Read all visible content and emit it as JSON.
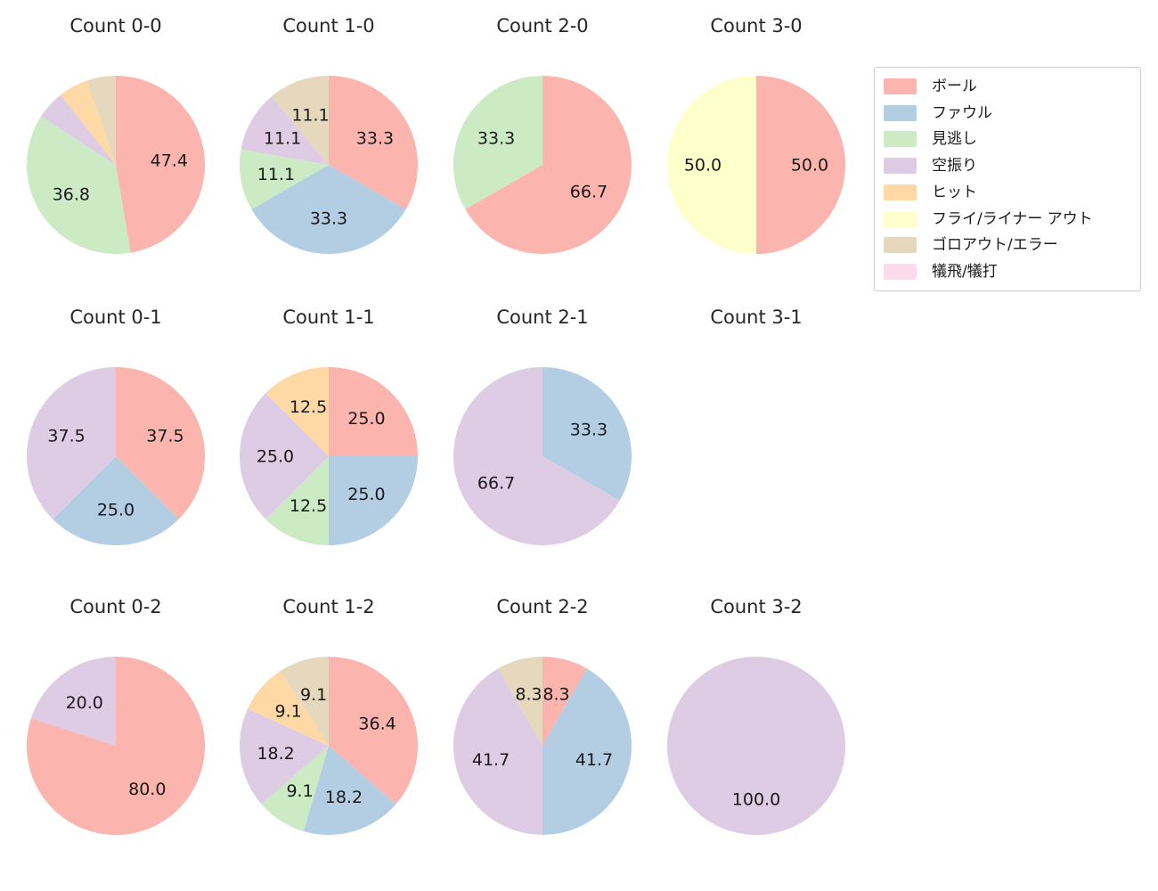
{
  "page": {
    "background": "#ffffff",
    "text_color": "#1a1a1a",
    "title_color": "#262626"
  },
  "legend": {
    "border_color": "#cccccc",
    "items": [
      {
        "label": "ボール",
        "color": "#fbb4ae"
      },
      {
        "label": "ファウル",
        "color": "#b3cde3"
      },
      {
        "label": "見逃し",
        "color": "#ccebc5"
      },
      {
        "label": "空振り",
        "color": "#decbe4"
      },
      {
        "label": "ヒット",
        "color": "#fed9a6"
      },
      {
        "label": "フライ/ライナー アウト",
        "color": "#ffffcc"
      },
      {
        "label": "ゴロアウト/エラー",
        "color": "#e5d8bd"
      },
      {
        "label": "犠飛/犠打",
        "color": "#fddaec"
      }
    ]
  },
  "chart_data": {
    "type": "pie",
    "layout": "4x3 grid of pie charts, legend box upper right",
    "start_angle_deg": 90,
    "direction": "clockwise",
    "pct_label_distance": 0.6,
    "pies": [
      {
        "title": "Count 0-0",
        "slices": [
          {
            "category": "ボール",
            "value": 47.4,
            "label": "47.4"
          },
          {
            "category": "見逃し",
            "value": 36.8,
            "label": "36.8"
          },
          {
            "category": "空振り",
            "value": 5.3,
            "label": ""
          },
          {
            "category": "ヒット",
            "value": 5.3,
            "label": ""
          },
          {
            "category": "ゴロアウト/エラー",
            "value": 5.3,
            "label": ""
          }
        ]
      },
      {
        "title": "Count 1-0",
        "slices": [
          {
            "category": "ボール",
            "value": 33.3,
            "label": "33.3"
          },
          {
            "category": "ファウル",
            "value": 33.3,
            "label": "33.3"
          },
          {
            "category": "見逃し",
            "value": 11.1,
            "label": "11.1"
          },
          {
            "category": "空振り",
            "value": 11.1,
            "label": "11.1"
          },
          {
            "category": "ゴロアウト/エラー",
            "value": 11.1,
            "label": "11.1"
          }
        ]
      },
      {
        "title": "Count 2-0",
        "slices": [
          {
            "category": "ボール",
            "value": 66.7,
            "label": "66.7"
          },
          {
            "category": "見逃し",
            "value": 33.3,
            "label": "33.3"
          }
        ]
      },
      {
        "title": "Count 3-0",
        "slices": [
          {
            "category": "ボール",
            "value": 50.0,
            "label": "50.0"
          },
          {
            "category": "フライ/ライナー アウト",
            "value": 50.0,
            "label": "50.0"
          }
        ]
      },
      {
        "title": "Count 0-1",
        "slices": [
          {
            "category": "ボール",
            "value": 37.5,
            "label": "37.5"
          },
          {
            "category": "ファウル",
            "value": 25.0,
            "label": "25.0"
          },
          {
            "category": "空振り",
            "value": 37.5,
            "label": "37.5"
          }
        ]
      },
      {
        "title": "Count 1-1",
        "slices": [
          {
            "category": "ボール",
            "value": 25.0,
            "label": "25.0"
          },
          {
            "category": "ファウル",
            "value": 25.0,
            "label": "25.0"
          },
          {
            "category": "見逃し",
            "value": 12.5,
            "label": "12.5"
          },
          {
            "category": "空振り",
            "value": 25.0,
            "label": "25.0"
          },
          {
            "category": "ヒット",
            "value": 12.5,
            "label": "12.5"
          }
        ]
      },
      {
        "title": "Count 2-1",
        "slices": [
          {
            "category": "ファウル",
            "value": 33.3,
            "label": "33.3"
          },
          {
            "category": "空振り",
            "value": 66.7,
            "label": "66.7"
          }
        ]
      },
      {
        "title": "Count 3-1",
        "slices": []
      },
      {
        "title": "Count 0-2",
        "slices": [
          {
            "category": "ボール",
            "value": 80.0,
            "label": "80.0"
          },
          {
            "category": "空振り",
            "value": 20.0,
            "label": "20.0"
          }
        ]
      },
      {
        "title": "Count 1-2",
        "slices": [
          {
            "category": "ボール",
            "value": 36.4,
            "label": "36.4"
          },
          {
            "category": "ファウル",
            "value": 18.2,
            "label": "18.2"
          },
          {
            "category": "見逃し",
            "value": 9.1,
            "label": "9.1"
          },
          {
            "category": "空振り",
            "value": 18.2,
            "label": "18.2"
          },
          {
            "category": "ヒット",
            "value": 9.1,
            "label": "9.1"
          },
          {
            "category": "ゴロアウト/エラー",
            "value": 9.1,
            "label": "9.1"
          }
        ]
      },
      {
        "title": "Count 2-2",
        "slices": [
          {
            "category": "ボール",
            "value": 8.3,
            "label": "8.3"
          },
          {
            "category": "ファウル",
            "value": 41.7,
            "label": "41.7"
          },
          {
            "category": "空振り",
            "value": 41.7,
            "label": "41.7"
          },
          {
            "category": "ゴロアウト/エラー",
            "value": 8.3,
            "label": "8.3"
          }
        ]
      },
      {
        "title": "Count 3-2",
        "slices": [
          {
            "category": "空振り",
            "value": 100.0,
            "label": "100.0"
          }
        ]
      }
    ]
  }
}
